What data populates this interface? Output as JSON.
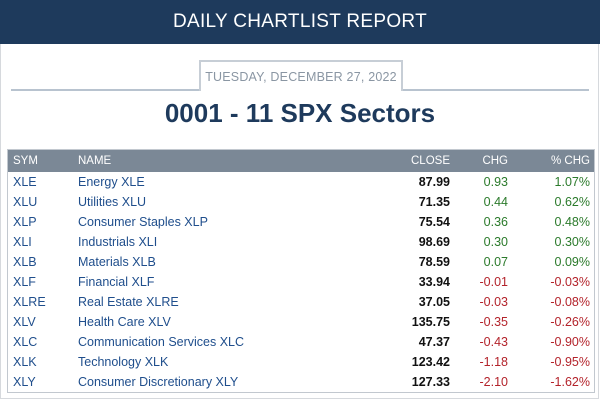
{
  "header": {
    "title": "DAILY CHARTLIST REPORT"
  },
  "report": {
    "date": "TUESDAY, DECEMBER 27, 2022",
    "list_title": "0001 - 11 SPX Sectors"
  },
  "table": {
    "columns": [
      "SYM",
      "NAME",
      "CLOSE",
      "CHG",
      "% CHG"
    ],
    "rows": [
      {
        "sym": "XLE",
        "name": "Energy XLE",
        "close": "87.99",
        "chg": "0.93",
        "pct": "1.07%",
        "dir": "pos"
      },
      {
        "sym": "XLU",
        "name": "Utilities XLU",
        "close": "71.35",
        "chg": "0.44",
        "pct": "0.62%",
        "dir": "pos"
      },
      {
        "sym": "XLP",
        "name": "Consumer Staples XLP",
        "close": "75.54",
        "chg": "0.36",
        "pct": "0.48%",
        "dir": "pos"
      },
      {
        "sym": "XLI",
        "name": "Industrials XLI",
        "close": "98.69",
        "chg": "0.30",
        "pct": "0.30%",
        "dir": "pos"
      },
      {
        "sym": "XLB",
        "name": "Materials XLB",
        "close": "78.59",
        "chg": "0.07",
        "pct": "0.09%",
        "dir": "pos"
      },
      {
        "sym": "XLF",
        "name": "Financial XLF",
        "close": "33.94",
        "chg": "-0.01",
        "pct": "-0.03%",
        "dir": "neg"
      },
      {
        "sym": "XLRE",
        "name": "Real Estate XLRE",
        "close": "37.05",
        "chg": "-0.03",
        "pct": "-0.08%",
        "dir": "neg"
      },
      {
        "sym": "XLV",
        "name": "Health Care XLV",
        "close": "135.75",
        "chg": "-0.35",
        "pct": "-0.26%",
        "dir": "neg"
      },
      {
        "sym": "XLC",
        "name": "Communication Services XLC",
        "close": "47.37",
        "chg": "-0.43",
        "pct": "-0.90%",
        "dir": "neg"
      },
      {
        "sym": "XLK",
        "name": "Technology XLK",
        "close": "123.42",
        "chg": "-1.18",
        "pct": "-0.95%",
        "dir": "neg"
      },
      {
        "sym": "XLY",
        "name": "Consumer Discretionary XLY",
        "close": "127.33",
        "chg": "-2.10",
        "pct": "-1.62%",
        "dir": "neg"
      }
    ]
  },
  "colors": {
    "header_bg": "#1e3a5c",
    "table_header_bg": "#7b8896",
    "link": "#1f4e8c",
    "positive": "#2b7a2b",
    "negative": "#b3232b"
  }
}
